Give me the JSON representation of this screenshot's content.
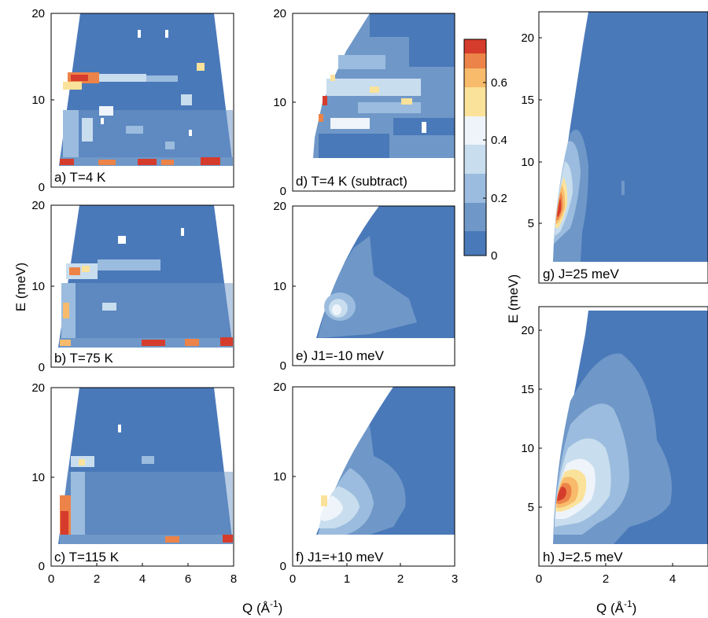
{
  "colors": {
    "levels": [
      "#4a79b9",
      "#6f98c8",
      "#9bbcde",
      "#c8ddee",
      "#eef4fa",
      "#fbe29a",
      "#f7bb6b",
      "#ec8348",
      "#d63c2c"
    ],
    "background": "#ffffff",
    "frame": "#000000"
  },
  "axis_labels": {
    "y_energy": "E (meV)",
    "x_q": "Q (Å",
    "x_q_sup": "-1",
    "x_q_close": ")"
  },
  "colorbar": {
    "ticks": [
      "0",
      "0.2",
      "0.4",
      "0.6"
    ],
    "range": [
      0,
      0.75
    ]
  },
  "chart_data": [
    {
      "id": "a",
      "type": "heatmap",
      "panel_label": "a) T=4 K",
      "xlim": [
        0,
        8
      ],
      "ylim": [
        0,
        20
      ],
      "xticks": [
        "0",
        "2",
        "4",
        "6",
        "8"
      ],
      "yticks": [
        "0",
        "10",
        "20"
      ],
      "features": [
        {
          "x": 1.0,
          "y": 12,
          "value": 0.65
        },
        {
          "x": 4.0,
          "y": 3,
          "value": 0.75
        }
      ]
    },
    {
      "id": "b",
      "type": "heatmap",
      "panel_label": "b) T=75 K",
      "xlim": [
        0,
        8
      ],
      "ylim": [
        0,
        20
      ],
      "xticks": [
        "0",
        "2",
        "4",
        "6",
        "8"
      ],
      "yticks": [
        "0",
        "10",
        "20"
      ],
      "features": [
        {
          "x": 1.0,
          "y": 11,
          "value": 0.5
        },
        {
          "x": 4.0,
          "y": 3,
          "value": 0.7
        }
      ]
    },
    {
      "id": "c",
      "type": "heatmap",
      "panel_label": "c) T=115 K",
      "xlim": [
        0,
        8
      ],
      "ylim": [
        0,
        20
      ],
      "xticks": [
        "0",
        "2",
        "4",
        "6",
        "8"
      ],
      "yticks": [
        "0",
        "10",
        "20"
      ],
      "features": [
        {
          "x": 0.6,
          "y": 4,
          "value": 0.75
        },
        {
          "x": 1.0,
          "y": 10,
          "value": 0.4
        }
      ]
    },
    {
      "id": "d",
      "type": "heatmap",
      "panel_label": "d) T=4 K (subtract)",
      "xlim": [
        0,
        3
      ],
      "ylim": [
        0,
        20
      ],
      "xticks": [],
      "yticks": [
        "0",
        "10",
        "20"
      ],
      "features": [
        {
          "x": 0.7,
          "y": 11,
          "value": 0.5
        }
      ]
    },
    {
      "id": "e",
      "type": "heatmap",
      "panel_label": "e) J1=-10 meV",
      "xlim": [
        0,
        3
      ],
      "ylim": [
        0,
        20
      ],
      "xticks": [],
      "yticks": [
        "0",
        "10",
        "20"
      ],
      "features": [
        {
          "x": 0.7,
          "y": 7,
          "value": 0.35
        }
      ]
    },
    {
      "id": "f",
      "type": "heatmap",
      "panel_label": "f) J1=+10 meV",
      "xlim": [
        0,
        3
      ],
      "ylim": [
        0,
        20
      ],
      "xticks": [
        "0",
        "1",
        "2",
        "3"
      ],
      "yticks": [
        "0",
        "10",
        "20"
      ],
      "features": [
        {
          "x": 0.7,
          "y": 7,
          "value": 0.45
        }
      ]
    },
    {
      "id": "g",
      "type": "heatmap",
      "panel_label": "g) J=25 meV",
      "xlim": [
        0,
        4.9
      ],
      "ylim": [
        0,
        22
      ],
      "xticks": [],
      "yticks": [
        "5",
        "10",
        "15",
        "20"
      ],
      "features": [
        {
          "x": 0.6,
          "y": 7.5,
          "value": 0.75
        }
      ]
    },
    {
      "id": "h",
      "type": "heatmap",
      "panel_label": "h) J=2.5 meV",
      "xlim": [
        0,
        4.9
      ],
      "ylim": [
        0,
        22
      ],
      "xticks": [
        "0",
        "2",
        "4"
      ],
      "yticks": [
        "5",
        "10",
        "15",
        "20"
      ],
      "features": [
        {
          "x": 0.7,
          "y": 7.2,
          "value": 0.75
        }
      ]
    }
  ]
}
